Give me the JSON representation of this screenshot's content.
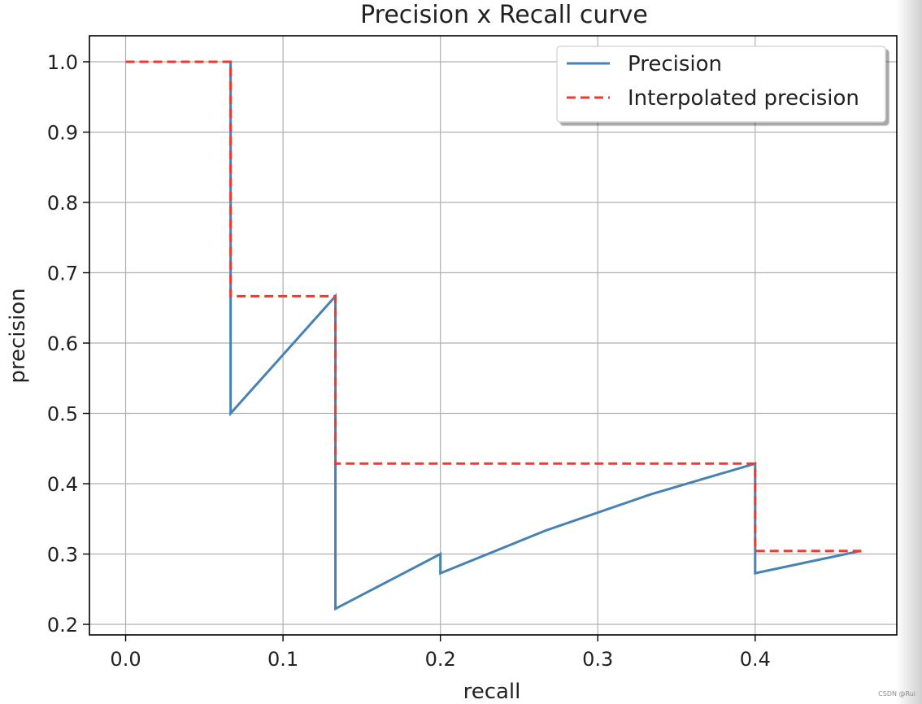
{
  "chart_data": {
    "type": "line",
    "title": "Precision x Recall curve",
    "xlabel": "recall",
    "ylabel": "precision",
    "xlim": [
      -0.023,
      0.49
    ],
    "ylim": [
      0.185,
      1.037
    ],
    "x_ticks": [
      0.0,
      0.1,
      0.2,
      0.3,
      0.4
    ],
    "x_tick_labels": [
      "0.0",
      "0.1",
      "0.2",
      "0.3",
      "0.4"
    ],
    "y_ticks": [
      0.2,
      0.3,
      0.4,
      0.5,
      0.6,
      0.7,
      0.8,
      0.9,
      1.0
    ],
    "y_tick_labels": [
      "0.2",
      "0.3",
      "0.4",
      "0.5",
      "0.6",
      "0.7",
      "0.8",
      "0.9",
      "1.0"
    ],
    "grid": true,
    "legend_position": "top-right",
    "series": [
      {
        "name": "Precision",
        "style": "solid",
        "color": "#4682b4",
        "x": [
          0.0667,
          0.0667,
          0.1333,
          0.1333,
          0.2,
          0.2,
          0.2667,
          0.3333,
          0.4,
          0.4,
          0.4667
        ],
        "y": [
          1.0,
          0.5,
          0.6667,
          0.2222,
          0.3,
          0.2727,
          0.3333,
          0.3846,
          0.4286,
          0.2727,
          0.3043
        ]
      },
      {
        "name": "Interpolated precision",
        "style": "dashed",
        "color": "#ef3a2f",
        "x": [
          0.0,
          0.0667,
          0.0667,
          0.1333,
          0.1333,
          0.4,
          0.4,
          0.4667,
          0.4667
        ],
        "y": [
          1.0,
          1.0,
          0.6667,
          0.6667,
          0.4286,
          0.4286,
          0.3043,
          0.3043,
          0.2955
        ]
      }
    ]
  },
  "watermark_text": "CSDN @Rui"
}
